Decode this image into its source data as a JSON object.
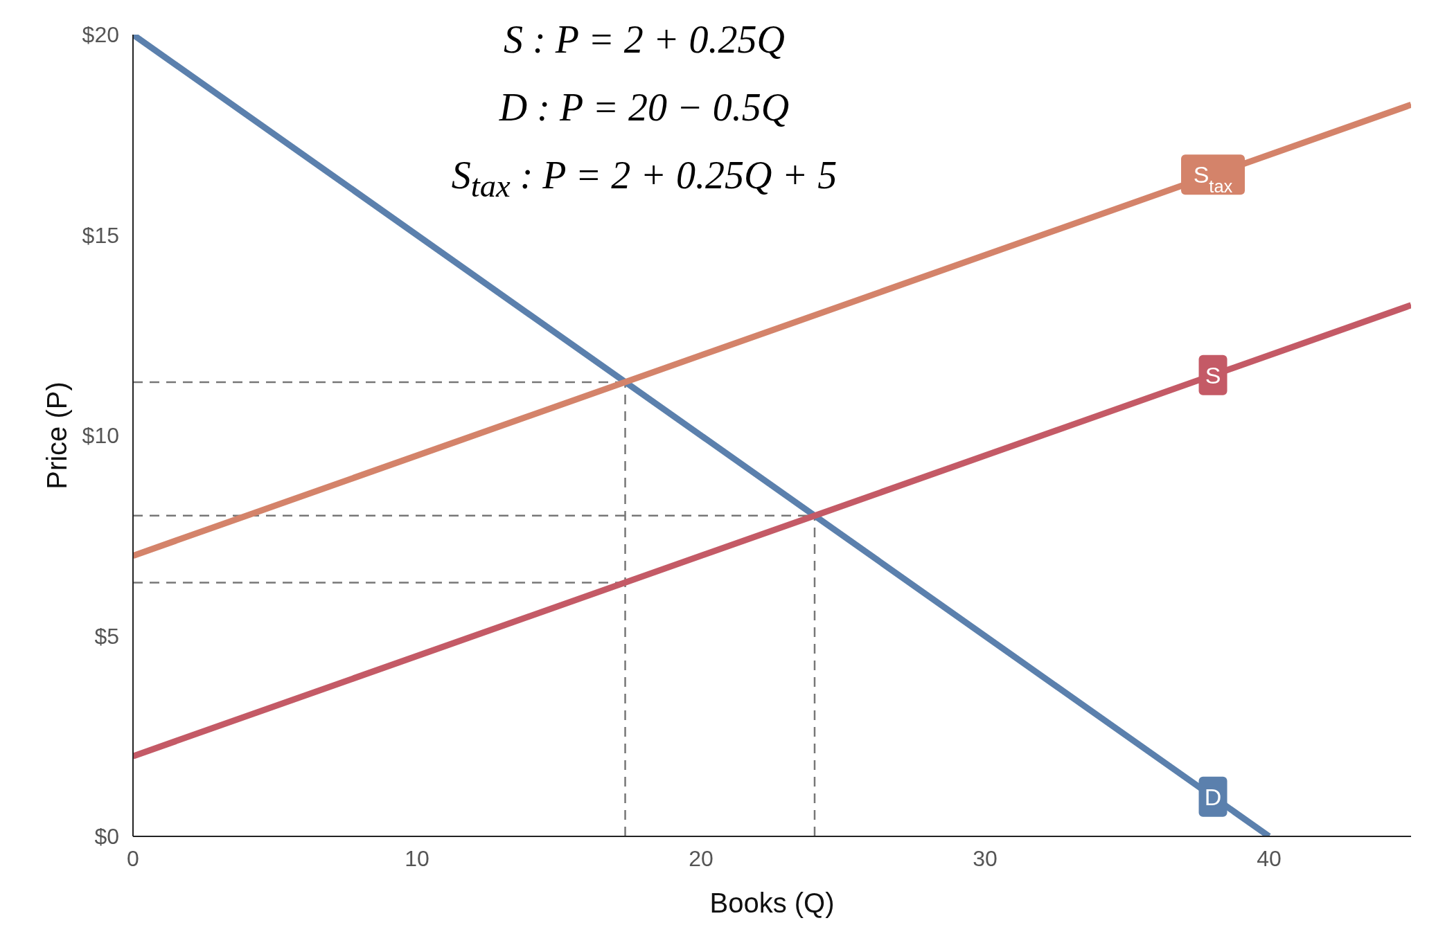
{
  "chart_data": {
    "type": "line",
    "xlabel": "Books (Q)",
    "ylabel": "Price (P)",
    "annotations": [
      "S : P = 2 + 0.25Q",
      "D : P = 20 − 0.5Q",
      "S$_{tax}$ : P = 2 + 0.25Q + 5"
    ],
    "xlim": [
      0,
      45
    ],
    "xticks": [
      0,
      10,
      20,
      30,
      40
    ],
    "ylim": [
      0,
      20
    ],
    "yticks": [
      {
        "value": 0,
        "label": "$0"
      },
      {
        "value": 5,
        "label": "$5"
      },
      {
        "value": 10,
        "label": "$10"
      },
      {
        "value": 15,
        "label": "$15"
      },
      {
        "value": 20,
        "label": "$20"
      }
    ],
    "grid": false,
    "legend": false,
    "marker": "none",
    "series": [
      {
        "x": [
          0,
          17.33
        ],
        "values": [
          11.33,
          11.33
        ],
        "color": "#777777",
        "line_style": "dashed"
      },
      {
        "x": [
          0,
          24
        ],
        "values": [
          8,
          8
        ],
        "color": "#777777",
        "line_style": "dashed"
      },
      {
        "x": [
          0,
          17.33
        ],
        "values": [
          6.33,
          6.33
        ],
        "color": "#777777",
        "line_style": "dashed"
      },
      {
        "x": [
          17.33,
          17.33
        ],
        "values": [
          0,
          11.33
        ],
        "color": "#777777",
        "line_style": "dashed"
      },
      {
        "x": [
          24,
          24
        ],
        "values": [
          0,
          8
        ],
        "color": "#777777",
        "line_style": "dashed"
      },
      {
        "name": "D",
        "x": [
          0,
          40
        ],
        "values": [
          20,
          0
        ],
        "color": "#5b80ad",
        "line_style": "solid"
      },
      {
        "name": "S",
        "x": [
          0,
          45
        ],
        "values": [
          2,
          13.25
        ],
        "color": "#c45a66",
        "line_style": "solid"
      },
      {
        "name": "S$_{tax}$",
        "x": [
          0,
          45
        ],
        "values": [
          7,
          18.25
        ],
        "color": "#d4836a",
        "line_style": "solid"
      }
    ]
  }
}
